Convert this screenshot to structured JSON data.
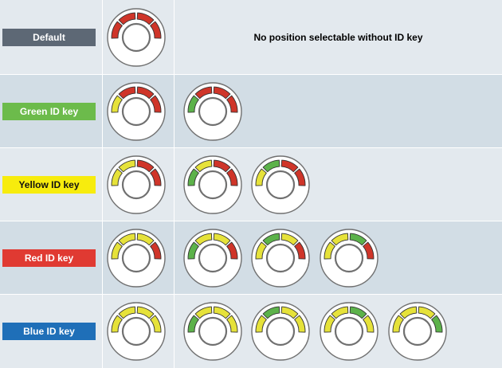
{
  "colors": {
    "red": "#cf3529",
    "yellow": "#e6e23a",
    "green": "#5cb24a",
    "ring_border": "#707070",
    "segment_outline": "#333333"
  },
  "rows": [
    {
      "label": "Default",
      "badge_color": "#5d6875",
      "badge_text_color": "light",
      "reference": [
        "red",
        "red",
        "red",
        "red"
      ],
      "positions": [],
      "note": "No position selectable without ID key"
    },
    {
      "label": "Green ID key",
      "badge_color": "#6cbb4b",
      "badge_text_color": "light",
      "reference": [
        "yellow",
        "red",
        "red",
        "red"
      ],
      "positions": [
        [
          "green",
          "red",
          "red",
          "red"
        ]
      ]
    },
    {
      "label": "Yellow ID key",
      "badge_color": "#f7ec0d",
      "badge_text_color": "dark",
      "reference": [
        "yellow",
        "yellow",
        "red",
        "red"
      ],
      "positions": [
        [
          "green",
          "yellow",
          "red",
          "red"
        ],
        [
          "yellow",
          "green",
          "red",
          "red"
        ]
      ]
    },
    {
      "label": "Red ID key",
      "badge_color": "#e03a32",
      "badge_text_color": "light",
      "reference": [
        "yellow",
        "yellow",
        "yellow",
        "red"
      ],
      "positions": [
        [
          "green",
          "yellow",
          "yellow",
          "red"
        ],
        [
          "yellow",
          "green",
          "yellow",
          "red"
        ],
        [
          "yellow",
          "yellow",
          "green",
          "red"
        ]
      ]
    },
    {
      "label": "Blue ID key",
      "badge_color": "#1f6fb8",
      "badge_text_color": "light",
      "reference": [
        "yellow",
        "yellow",
        "yellow",
        "yellow"
      ],
      "positions": [
        [
          "green",
          "yellow",
          "yellow",
          "yellow"
        ],
        [
          "yellow",
          "green",
          "yellow",
          "yellow"
        ],
        [
          "yellow",
          "yellow",
          "green",
          "yellow"
        ],
        [
          "yellow",
          "yellow",
          "yellow",
          "green"
        ]
      ]
    }
  ]
}
